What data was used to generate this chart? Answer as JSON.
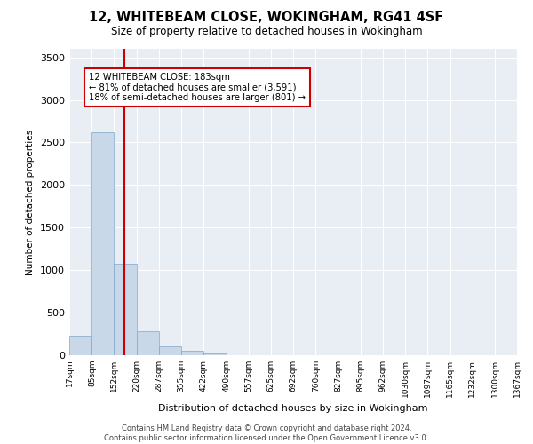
{
  "title1": "12, WHITEBEAM CLOSE, WOKINGHAM, RG41 4SF",
  "title2": "Size of property relative to detached houses in Wokingham",
  "xlabel": "Distribution of detached houses by size in Wokingham",
  "ylabel": "Number of detached properties",
  "footnote": "Contains HM Land Registry data © Crown copyright and database right 2024.\nContains public sector information licensed under the Open Government Licence v3.0.",
  "bin_labels": [
    "17sqm",
    "85sqm",
    "152sqm",
    "220sqm",
    "287sqm",
    "355sqm",
    "422sqm",
    "490sqm",
    "557sqm",
    "625sqm",
    "692sqm",
    "760sqm",
    "827sqm",
    "895sqm",
    "962sqm",
    "1030sqm",
    "1097sqm",
    "1165sqm",
    "1232sqm",
    "1300sqm",
    "1367sqm"
  ],
  "bar_values": [
    230,
    2620,
    1080,
    280,
    100,
    55,
    25,
    0,
    0,
    0,
    0,
    0,
    0,
    0,
    0,
    0,
    0,
    0,
    0,
    0
  ],
  "bar_color": "#c8d8e8",
  "bar_edge_color": "#7fa8c8",
  "property_size": 183,
  "property_label": "12 WHITEBEAM CLOSE: 183sqm",
  "pct_smaller": 81,
  "n_smaller": 3591,
  "pct_larger_semi": 18,
  "n_larger_semi": 801,
  "vline_color": "#cc0000",
  "annotation_box_color": "#cc0000",
  "ylim": [
    0,
    3600
  ],
  "yticks": [
    0,
    500,
    1000,
    1500,
    2000,
    2500,
    3000,
    3500
  ],
  "background_color": "#e8eef4",
  "grid_color": "#ffffff",
  "bin_edges": [
    17,
    85,
    152,
    220,
    287,
    355,
    422,
    490,
    557,
    625,
    692,
    760,
    827,
    895,
    962,
    1030,
    1097,
    1165,
    1232,
    1300,
    1367
  ]
}
